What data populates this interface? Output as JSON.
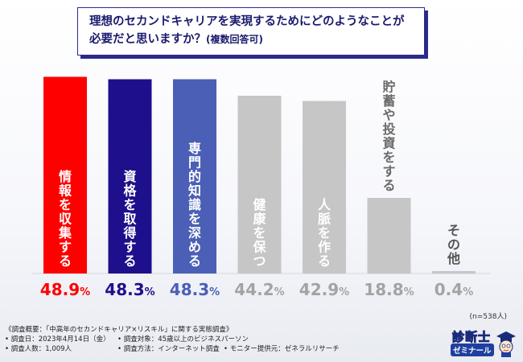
{
  "question": {
    "line1": "理想のセカンドキャリアを実現するためにどのようなことが",
    "line2_main": "必要だと思いますか？",
    "line2_note": "(複数回答可)"
  },
  "colors": {
    "accent_red": "#ff0000",
    "accent_navy": "#1e0f8c",
    "accent_blue": "#4a5fb5",
    "neutral_gray": "#c6c6c6",
    "pct_gray": "#a3a3a3"
  },
  "chart_data": {
    "type": "bar",
    "categories": [
      "情報を収集する",
      "資格を取得する",
      "専門的知識を深める",
      "健康を保つ",
      "人脈を作る",
      "貯蓄や投資をする",
      "その他"
    ],
    "values": [
      48.9,
      48.3,
      48.3,
      44.2,
      42.9,
      18.8,
      0.4
    ],
    "value_labels": [
      {
        "num": "48.9",
        "unit": "%"
      },
      {
        "num": "48.3",
        "unit": "%"
      },
      {
        "num": "48.3",
        "unit": "%"
      },
      {
        "num": "44.2",
        "unit": "%"
      },
      {
        "num": "42.9",
        "unit": "%"
      },
      {
        "num": "18.8",
        "unit": "%"
      },
      {
        "num": "0.4",
        "unit": "%"
      }
    ],
    "bar_colors": [
      "#ff0000",
      "#1e0f8c",
      "#4a5fb5",
      "#c6c6c6",
      "#c6c6c6",
      "#c6c6c6",
      "#c6c6c6"
    ],
    "label_colors": [
      "#ffffff",
      "#ffffff",
      "#ffffff",
      "#ffffff",
      "#ffffff",
      "#6a6a6a",
      "#555555"
    ],
    "pct_colors": [
      "#ff0000",
      "#1e0f8c",
      "#4a5fb5",
      "#a3a3a3",
      "#a3a3a3",
      "#a3a3a3",
      "#a3a3a3"
    ],
    "ylim": [
      0,
      50
    ],
    "title": "",
    "xlabel": "",
    "ylabel": ""
  },
  "sample_size": "(n=538人)",
  "footer": {
    "overview": "《調査概要：「中高年のセカンドキャリア×リスキル」に関する実態調査》",
    "date": "• 調査日：2023年4月14日（金）",
    "target": "• 調査対象：45歳以上のビジネスパーソン",
    "count": "• 調査人数：1,009人",
    "method": "• 調査方法：インターネット調査",
    "provider": "• モニター提供元：ゼネラルリサーチ"
  },
  "logo": {
    "line1": "診断士",
    "line2": "ゼミナール"
  }
}
